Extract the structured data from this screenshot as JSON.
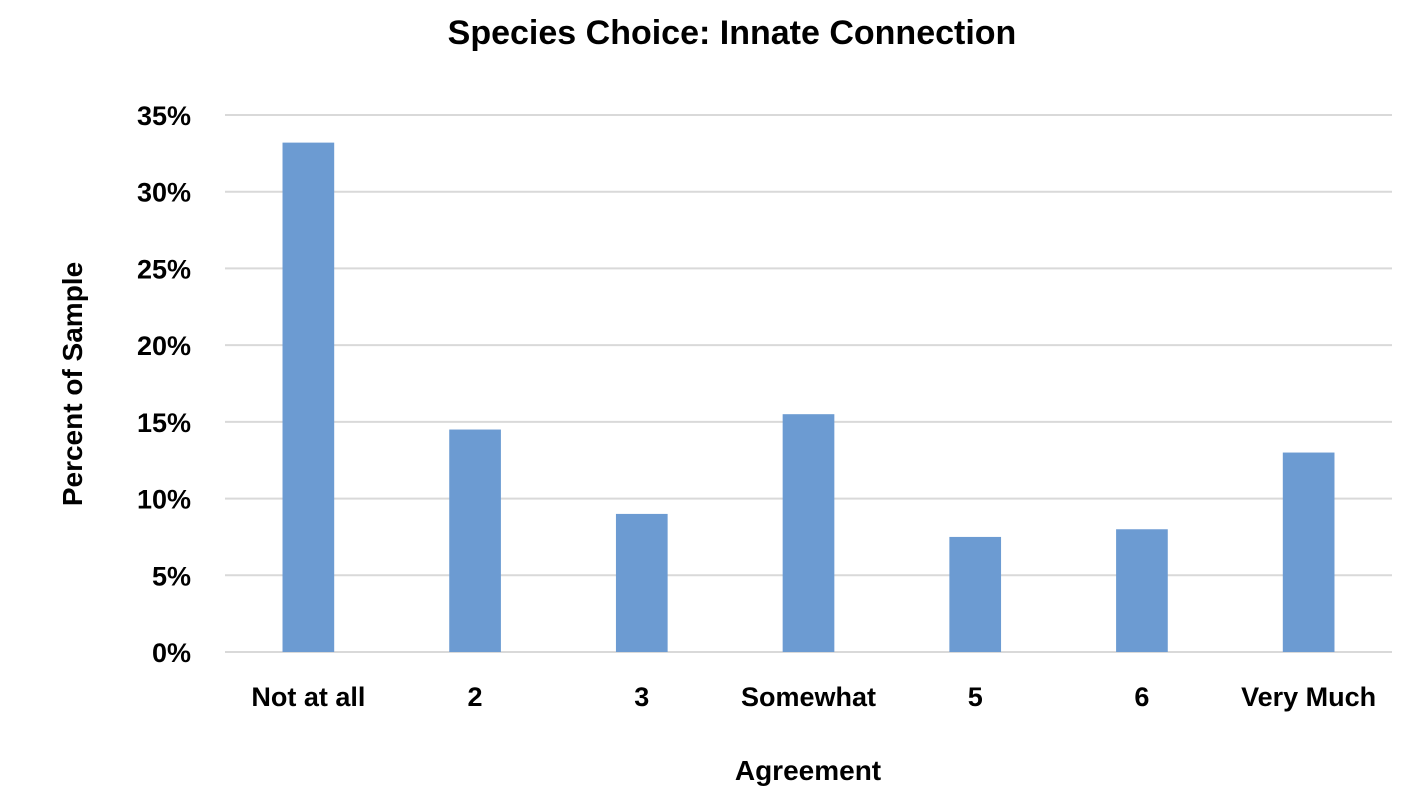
{
  "chart_data": {
    "type": "bar",
    "title": "Species Choice: Innate Connection",
    "xlabel": "Agreement",
    "ylabel": "Percent of Sample",
    "categories": [
      "Not at all",
      "2",
      "3",
      "Somewhat",
      "5",
      "6",
      "Very Much"
    ],
    "series": [
      {
        "values": [
          33.2,
          14.5,
          9.0,
          15.5,
          7.5,
          8.0,
          13.0
        ],
        "color": "#6c9bd2"
      }
    ],
    "ylim": [
      0,
      35
    ],
    "yticks": [
      0,
      5,
      10,
      15,
      20,
      25,
      30,
      35
    ],
    "ytick_labels": [
      "0%",
      "5%",
      "10%",
      "15%",
      "20%",
      "25%",
      "30%",
      "35%"
    ],
    "grid": true,
    "legend": "none"
  }
}
